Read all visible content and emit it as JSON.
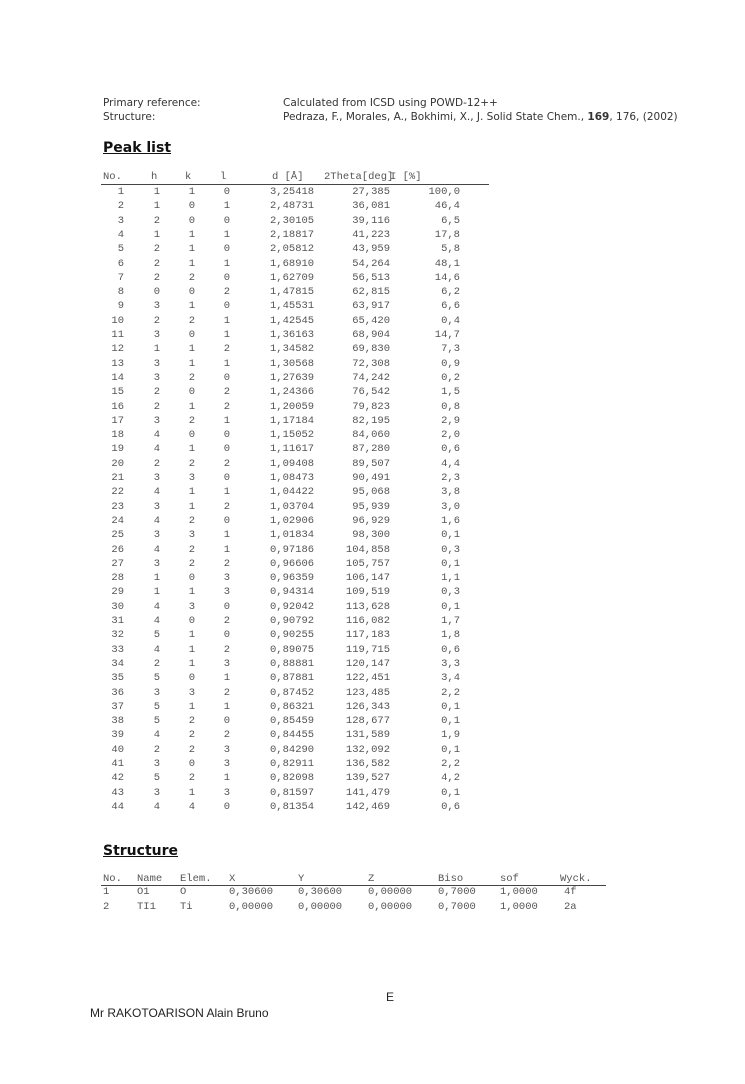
{
  "references": {
    "primary_label": "Primary reference:",
    "primary_value": "Calculated from ICSD using POWD-12++",
    "structure_label": "Structure:",
    "structure_pre": "Pedraza, F., Morales, A., Bokhimi, X., J. Solid State Chem., ",
    "structure_bold": "169",
    "structure_post": ", 176, (2002)"
  },
  "peak_list": {
    "title": "Peak list",
    "headers": [
      "No.",
      "h",
      "k",
      "l",
      "d [Å]",
      "2Theta[deg]",
      "I [%]"
    ],
    "rows": [
      [
        "1",
        "1",
        "1",
        "0",
        "3,25418",
        "27,385",
        "100,0"
      ],
      [
        "2",
        "1",
        "0",
        "1",
        "2,48731",
        "36,081",
        "46,4"
      ],
      [
        "3",
        "2",
        "0",
        "0",
        "2,30105",
        "39,116",
        "6,5"
      ],
      [
        "4",
        "1",
        "1",
        "1",
        "2,18817",
        "41,223",
        "17,8"
      ],
      [
        "5",
        "2",
        "1",
        "0",
        "2,05812",
        "43,959",
        "5,8"
      ],
      [
        "6",
        "2",
        "1",
        "1",
        "1,68910",
        "54,264",
        "48,1"
      ],
      [
        "7",
        "2",
        "2",
        "0",
        "1,62709",
        "56,513",
        "14,6"
      ],
      [
        "8",
        "0",
        "0",
        "2",
        "1,47815",
        "62,815",
        "6,2"
      ],
      [
        "9",
        "3",
        "1",
        "0",
        "1,45531",
        "63,917",
        "6,6"
      ],
      [
        "10",
        "2",
        "2",
        "1",
        "1,42545",
        "65,420",
        "0,4"
      ],
      [
        "11",
        "3",
        "0",
        "1",
        "1,36163",
        "68,904",
        "14,7"
      ],
      [
        "12",
        "1",
        "1",
        "2",
        "1,34582",
        "69,830",
        "7,3"
      ],
      [
        "13",
        "3",
        "1",
        "1",
        "1,30568",
        "72,308",
        "0,9"
      ],
      [
        "14",
        "3",
        "2",
        "0",
        "1,27639",
        "74,242",
        "0,2"
      ],
      [
        "15",
        "2",
        "0",
        "2",
        "1,24366",
        "76,542",
        "1,5"
      ],
      [
        "16",
        "2",
        "1",
        "2",
        "1,20059",
        "79,823",
        "0,8"
      ],
      [
        "17",
        "3",
        "2",
        "1",
        "1,17184",
        "82,195",
        "2,9"
      ],
      [
        "18",
        "4",
        "0",
        "0",
        "1,15052",
        "84,060",
        "2,0"
      ],
      [
        "19",
        "4",
        "1",
        "0",
        "1,11617",
        "87,280",
        "0,6"
      ],
      [
        "20",
        "2",
        "2",
        "2",
        "1,09408",
        "89,507",
        "4,4"
      ],
      [
        "21",
        "3",
        "3",
        "0",
        "1,08473",
        "90,491",
        "2,3"
      ],
      [
        "22",
        "4",
        "1",
        "1",
        "1,04422",
        "95,068",
        "3,8"
      ],
      [
        "23",
        "3",
        "1",
        "2",
        "1,03704",
        "95,939",
        "3,0"
      ],
      [
        "24",
        "4",
        "2",
        "0",
        "1,02906",
        "96,929",
        "1,6"
      ],
      [
        "25",
        "3",
        "3",
        "1",
        "1,01834",
        "98,300",
        "0,1"
      ],
      [
        "26",
        "4",
        "2",
        "1",
        "0,97186",
        "104,858",
        "0,3"
      ],
      [
        "27",
        "3",
        "2",
        "2",
        "0,96606",
        "105,757",
        "0,1"
      ],
      [
        "28",
        "1",
        "0",
        "3",
        "0,96359",
        "106,147",
        "1,1"
      ],
      [
        "29",
        "1",
        "1",
        "3",
        "0,94314",
        "109,519",
        "0,3"
      ],
      [
        "30",
        "4",
        "3",
        "0",
        "0,92042",
        "113,628",
        "0,1"
      ],
      [
        "31",
        "4",
        "0",
        "2",
        "0,90792",
        "116,082",
        "1,7"
      ],
      [
        "32",
        "5",
        "1",
        "0",
        "0,90255",
        "117,183",
        "1,8"
      ],
      [
        "33",
        "4",
        "1",
        "2",
        "0,89075",
        "119,715",
        "0,6"
      ],
      [
        "34",
        "2",
        "1",
        "3",
        "0,88881",
        "120,147",
        "3,3"
      ],
      [
        "35",
        "5",
        "0",
        "1",
        "0,87881",
        "122,451",
        "3,4"
      ],
      [
        "36",
        "3",
        "3",
        "2",
        "0,87452",
        "123,485",
        "2,2"
      ],
      [
        "37",
        "5",
        "1",
        "1",
        "0,86321",
        "126,343",
        "0,1"
      ],
      [
        "38",
        "5",
        "2",
        "0",
        "0,85459",
        "128,677",
        "0,1"
      ],
      [
        "39",
        "4",
        "2",
        "2",
        "0,84455",
        "131,589",
        "1,9"
      ],
      [
        "40",
        "2",
        "2",
        "3",
        "0,84290",
        "132,092",
        "0,1"
      ],
      [
        "41",
        "3",
        "0",
        "3",
        "0,82911",
        "136,582",
        "2,2"
      ],
      [
        "42",
        "5",
        "2",
        "1",
        "0,82098",
        "139,527",
        "4,2"
      ],
      [
        "43",
        "3",
        "1",
        "3",
        "0,81597",
        "141,479",
        "0,1"
      ],
      [
        "44",
        "4",
        "4",
        "0",
        "0,81354",
        "142,469",
        "0,6"
      ]
    ]
  },
  "structure": {
    "title": "Structure",
    "headers": [
      "No.",
      "Name",
      "Elem.",
      "X",
      "Y",
      "Z",
      "Biso",
      "sof",
      "Wyck."
    ],
    "rows": [
      [
        "1",
        "O1",
        "O",
        "0,30600",
        "0,30600",
        "0,00000",
        "0,7000",
        "1,0000",
        "4f"
      ],
      [
        "2",
        "TI1",
        "Ti",
        "0,00000",
        "0,00000",
        "0,00000",
        "0,7000",
        "1,0000",
        "2a"
      ]
    ]
  },
  "footer": {
    "page_label": "E",
    "author": "Mr RAKOTOARISON Alain Bruno"
  }
}
